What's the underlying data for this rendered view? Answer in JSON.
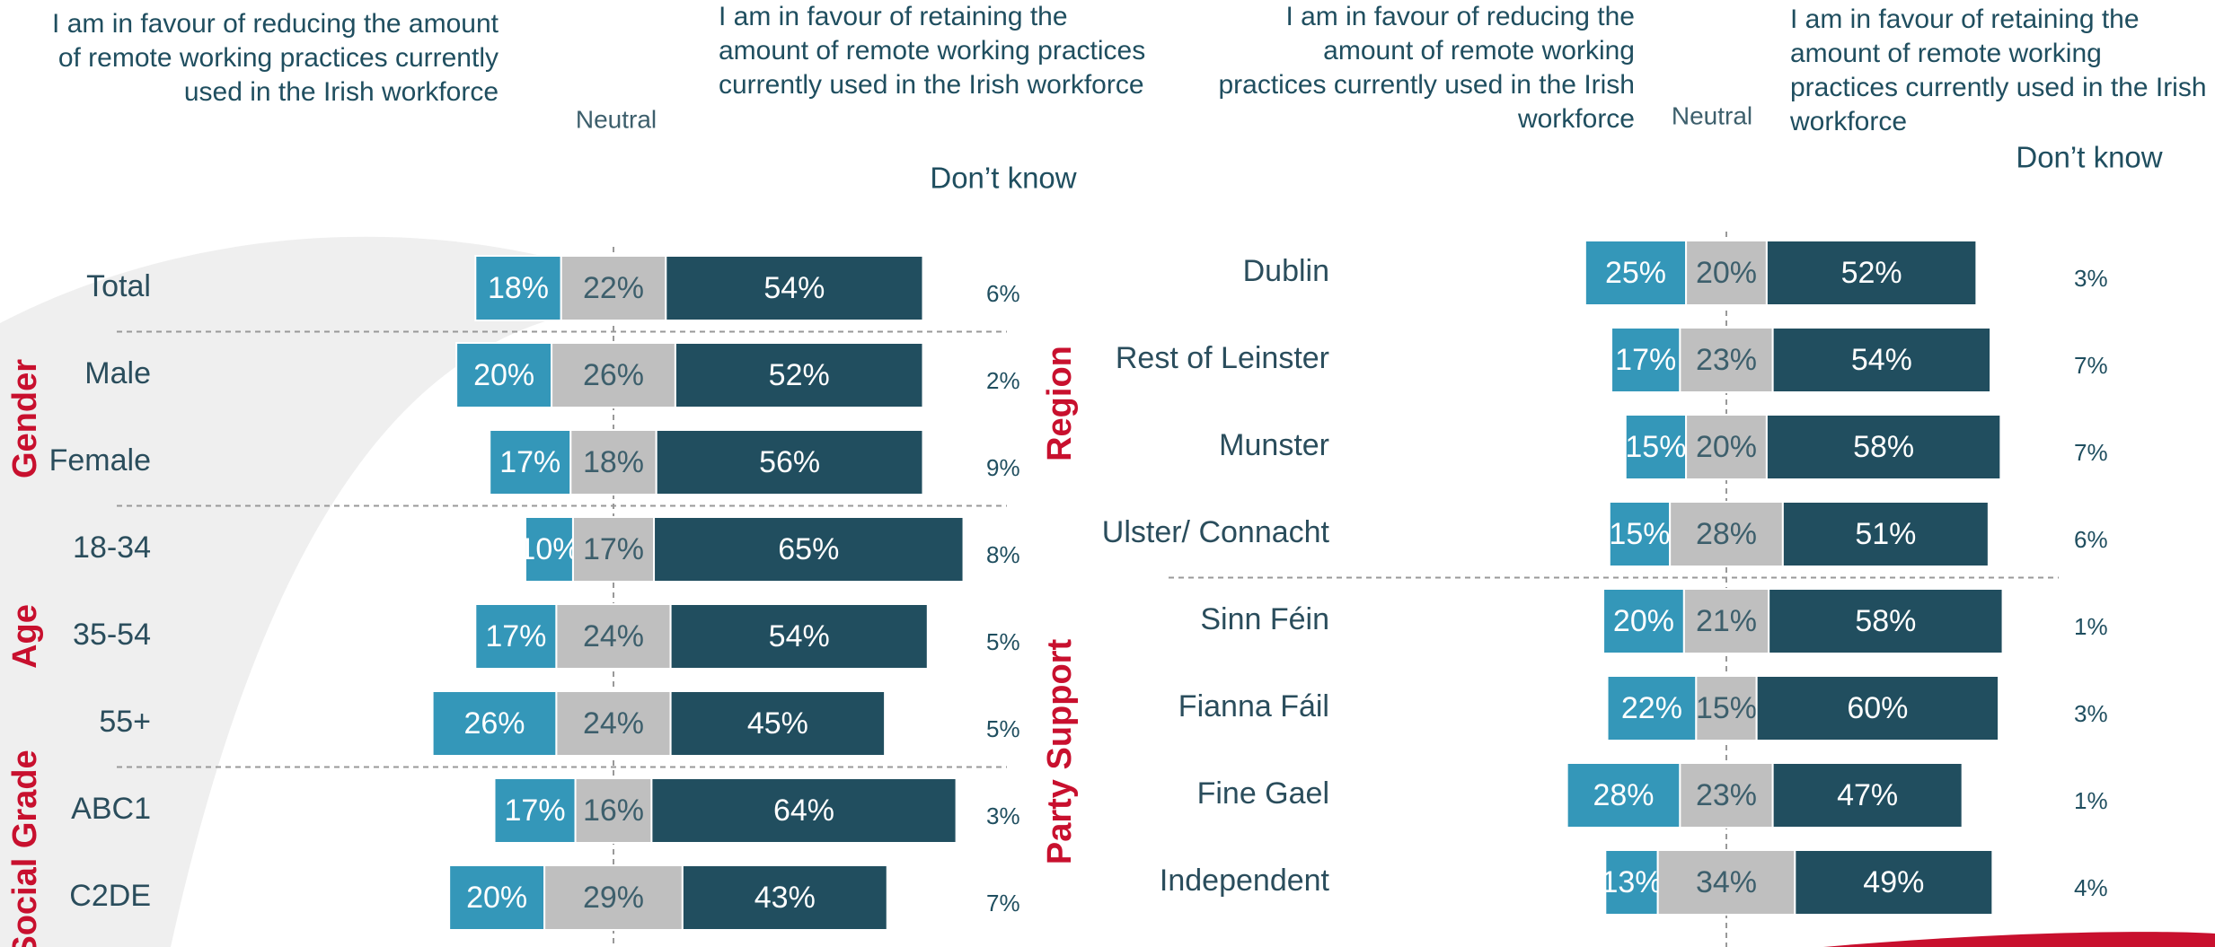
{
  "chart_data": [
    {
      "type": "bar",
      "orientation": "horizontal",
      "layout": "diverging",
      "categories": [
        "Total",
        "Male",
        "Female",
        "18-34",
        "35-54",
        "55+",
        "ABC1",
        "C2DE"
      ],
      "groups": [
        {
          "label": "Gender",
          "start": 1,
          "end": 2
        },
        {
          "label": "Age",
          "start": 3,
          "end": 5
        },
        {
          "label": "Social Grade",
          "start": 6,
          "end": 7
        }
      ],
      "series": [
        {
          "name": "I am in favour of reducing the amount of remote working practices currently used in the Irish workforce",
          "color": "#3497b9",
          "side": "left",
          "values": [
            18,
            20,
            17,
            10,
            17,
            26,
            17,
            20
          ],
          "value_labels": [
            "18%",
            "20%",
            "17%",
            "10%",
            "17%",
            "26%",
            "17%",
            "20%"
          ]
        },
        {
          "name": "Neutral",
          "color": "#bfbfbf",
          "side": "center",
          "values": [
            22,
            26,
            18,
            17,
            24,
            24,
            16,
            29
          ],
          "value_labels": [
            "22%",
            "26%",
            "18%",
            "17%",
            "24%",
            "24%",
            "16%",
            "29%"
          ]
        },
        {
          "name": "I am in favour of retaining the amount of remote working practices currently used in the Irish workforce",
          "color": "#214e5f",
          "side": "right",
          "values": [
            54,
            52,
            56,
            65,
            54,
            45,
            64,
            43
          ],
          "value_labels": [
            "54%",
            "52%",
            "56%",
            "65%",
            "54%",
            "45%",
            "64%",
            "43%"
          ]
        },
        {
          "name": "Don’t know",
          "color": "#1f4e5f",
          "side": "text",
          "values": [
            6,
            2,
            9,
            8,
            5,
            5,
            3,
            7
          ],
          "value_labels": [
            "6%",
            "2%",
            "9%",
            "8%",
            "5%",
            "5%",
            "3%",
            "7%"
          ]
        }
      ]
    },
    {
      "type": "bar",
      "orientation": "horizontal",
      "layout": "diverging",
      "categories": [
        "Dublin",
        "Rest of Leinster",
        "Munster",
        "Ulster/ Connacht",
        "Sinn Féin",
        "Fianna Fáil",
        "Fine Gael",
        "Independent"
      ],
      "groups": [
        {
          "label": "Region",
          "start": 0,
          "end": 3
        },
        {
          "label": "Party Support",
          "start": 4,
          "end": 7
        }
      ],
      "series": [
        {
          "name": "I am in favour of reducing the amount of remote working practices currently used in the Irish workforce",
          "color": "#3497b9",
          "side": "left",
          "values": [
            25,
            17,
            15,
            15,
            20,
            22,
            28,
            13
          ],
          "value_labels": [
            "25%",
            "17%",
            "15%",
            "15%",
            "20%",
            "22%",
            "28%",
            "13%"
          ]
        },
        {
          "name": "Neutral",
          "color": "#bfbfbf",
          "side": "center",
          "values": [
            20,
            23,
            20,
            28,
            21,
            15,
            23,
            34
          ],
          "value_labels": [
            "20%",
            "23%",
            "20%",
            "28%",
            "21%",
            "15%",
            "23%",
            "34%"
          ]
        },
        {
          "name": "I am in favour of retaining the amount of remote working practices currently used in the Irish workforce",
          "color": "#214e5f",
          "side": "right",
          "values": [
            52,
            54,
            58,
            51,
            58,
            60,
            47,
            49
          ],
          "value_labels": [
            "52%",
            "54%",
            "58%",
            "51%",
            "58%",
            "60%",
            "47%",
            "49%"
          ]
        },
        {
          "name": "Don’t know",
          "color": "#1f4e5f",
          "side": "text",
          "values": [
            3,
            7,
            7,
            6,
            1,
            3,
            1,
            4
          ],
          "value_labels": [
            "3%",
            "7%",
            "7%",
            "6%",
            "1%",
            "3%",
            "1%",
            "4%"
          ]
        }
      ]
    }
  ]
}
